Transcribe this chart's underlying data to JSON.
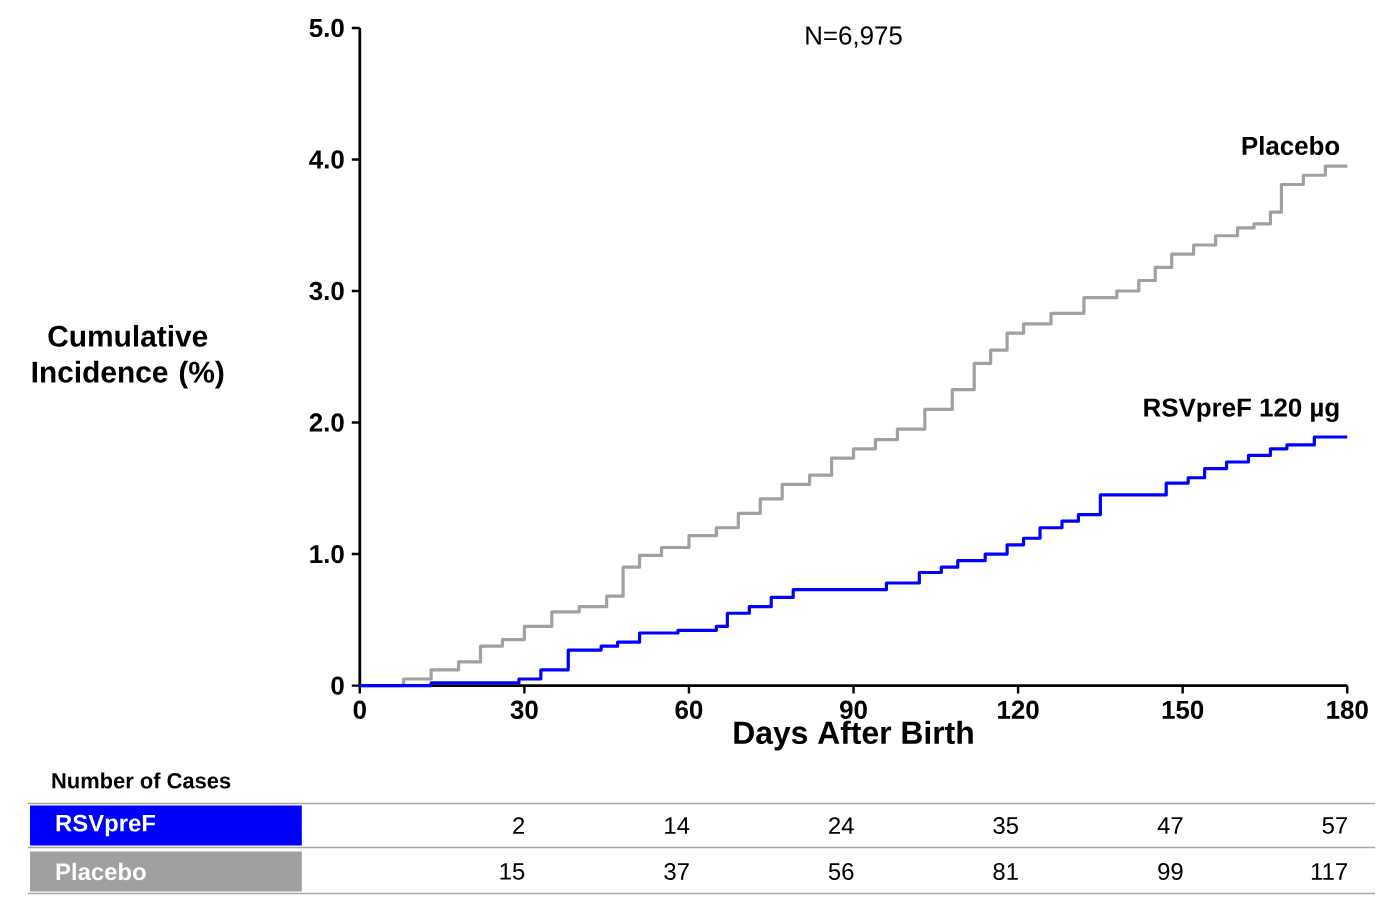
{
  "chart_data": {
    "type": "step",
    "title": "N=6,975",
    "xlabel": "Days After Birth",
    "ylabel": "Cumulative Incidence (%)",
    "xlim": [
      0,
      180
    ],
    "ylim": [
      0,
      5
    ],
    "xticks": [
      0,
      30,
      60,
      90,
      120,
      150,
      180
    ],
    "yticks": [
      {
        "value": 0,
        "label": "0"
      },
      {
        "value": 1,
        "label": "1.0"
      },
      {
        "value": 2,
        "label": "2.0"
      },
      {
        "value": 3,
        "label": "3.0"
      },
      {
        "value": 4,
        "label": "4.0"
      },
      {
        "value": 5,
        "label": "5.0"
      }
    ],
    "grid": false,
    "legend": false,
    "series": [
      {
        "name": "Placebo",
        "color": "#a0a0a0",
        "x": [
          0,
          8,
          13,
          18,
          22,
          26,
          30,
          35,
          40,
          45,
          48,
          51,
          55,
          60,
          65,
          69,
          73,
          77,
          82,
          86,
          90,
          94,
          98,
          103,
          108,
          112,
          115,
          118,
          121,
          126,
          132,
          138,
          142,
          145,
          148,
          152,
          156,
          160,
          163,
          166,
          168,
          172,
          176,
          180
        ],
        "values": [
          0,
          0.05,
          0.12,
          0.18,
          0.3,
          0.35,
          0.45,
          0.56,
          0.6,
          0.68,
          0.9,
          0.99,
          1.05,
          1.14,
          1.2,
          1.31,
          1.42,
          1.53,
          1.6,
          1.73,
          1.8,
          1.87,
          1.95,
          2.1,
          2.25,
          2.45,
          2.55,
          2.68,
          2.75,
          2.83,
          2.95,
          3.0,
          3.08,
          3.18,
          3.28,
          3.35,
          3.42,
          3.48,
          3.51,
          3.6,
          3.81,
          3.88,
          3.95,
          3.95
        ]
      },
      {
        "name": "RSVpreF 120 µg",
        "color": "#0000ff",
        "x": [
          0,
          13,
          29,
          33,
          38,
          44,
          47,
          51,
          58,
          65,
          67,
          71,
          75,
          79,
          85,
          91,
          96,
          102,
          106,
          109,
          114,
          118,
          121,
          124,
          128,
          131,
          135,
          140,
          147,
          151,
          154,
          158,
          162,
          166,
          169,
          174,
          180
        ],
        "values": [
          0,
          0.02,
          0.05,
          0.12,
          0.27,
          0.3,
          0.33,
          0.4,
          0.42,
          0.45,
          0.55,
          0.6,
          0.67,
          0.73,
          0.73,
          0.73,
          0.78,
          0.86,
          0.9,
          0.95,
          1.0,
          1.07,
          1.12,
          1.2,
          1.25,
          1.3,
          1.45,
          1.45,
          1.54,
          1.58,
          1.65,
          1.7,
          1.75,
          1.8,
          1.83,
          1.89,
          1.89
        ]
      }
    ],
    "annotations": [
      "Number of Cases",
      "RSVpreF",
      "2",
      "14",
      "24",
      "35",
      "47",
      "57",
      "Placebo",
      "15",
      "37",
      "56",
      "81",
      "99",
      "117"
    ]
  }
}
